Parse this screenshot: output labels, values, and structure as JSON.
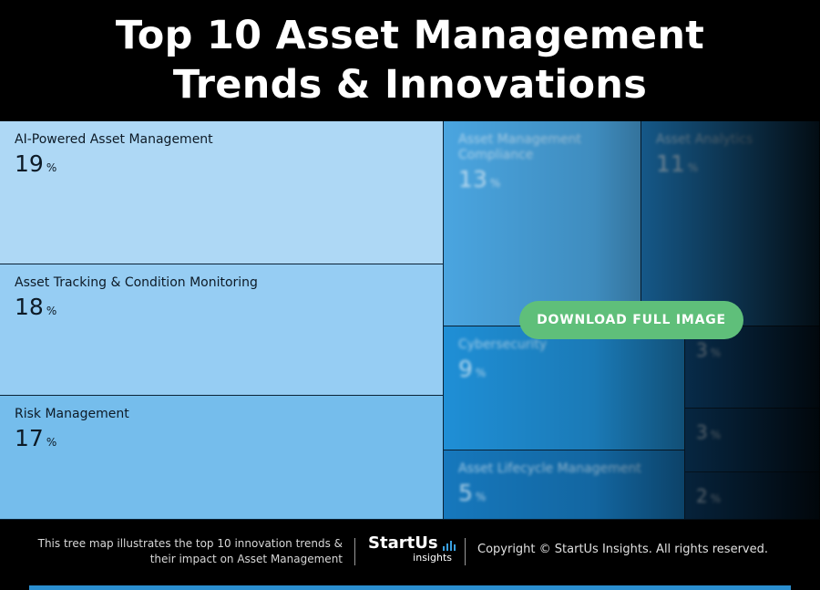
{
  "header": {
    "title_line1": "Top 10 Asset Management",
    "title_line2": "Trends & Innovations"
  },
  "chart_data": {
    "type": "treemap",
    "title": "Top 10 Asset Management Trends & Innovations",
    "unit": "%",
    "items": [
      {
        "label": "AI-Powered Asset Management",
        "value": 19,
        "color": "#aed8f5"
      },
      {
        "label": "Asset Tracking & Condition Monitoring",
        "value": 18,
        "color": "#96cdf3"
      },
      {
        "label": "Risk Management",
        "value": 17,
        "color": "#75bdec"
      },
      {
        "label": "Asset Management Compliance",
        "value": 13,
        "color": "#4aa5e0"
      },
      {
        "label": "Asset Analytics",
        "value": 11,
        "color": "#1f7fc4"
      },
      {
        "label": "Cybersecurity",
        "value": 9,
        "color": "#1f8fd6"
      },
      {
        "label": "Asset Lifecycle Management",
        "value": 5,
        "color": "#1678bd"
      },
      {
        "label": "",
        "value": 3,
        "color": "#0e4f86"
      },
      {
        "label": "",
        "value": 3,
        "color": "#0c4677"
      },
      {
        "label": "",
        "value": 2,
        "color": "#0b3f6c"
      }
    ]
  },
  "actions": {
    "download_label": "DOWNLOAD FULL IMAGE"
  },
  "footer": {
    "description_line1": "This tree map illustrates the top 10 innovation trends &",
    "description_line2": "their impact on Asset Management",
    "logo_main": "StartUs",
    "logo_sub": "insights",
    "copyright": "Copyright © StartUs Insights. All rights reserved."
  },
  "colors": {
    "accent_green": "#5fbf7a",
    "bottom_bar": "#2b8fd0"
  }
}
